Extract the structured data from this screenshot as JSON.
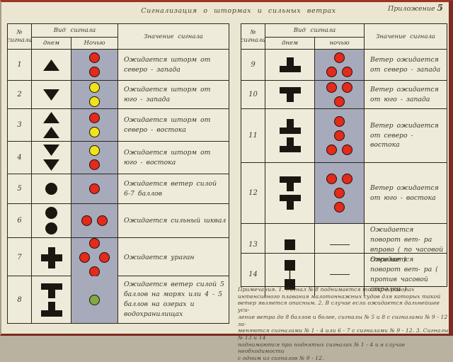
{
  "page": {
    "title": "Сигнализация  о  штормах  и  сильных  ветрах",
    "appendix_label": "Приложение",
    "appendix_number": "5"
  },
  "colors": {
    "red": "#e32a1b",
    "yellow": "#f0e31c",
    "green": "#82a944",
    "signal_black": "#1b1710",
    "night_bg": "#a7aaba",
    "accent_border": "#9e3424"
  },
  "tables": [
    {
      "id": "storm-signals",
      "header": {
        "col_num_line1": "№",
        "col_num_line2": "сигнала",
        "col_view": "Вид  сигнала",
        "col_day": "днем",
        "col_night": "Ночью",
        "col_meaning": "Значение  сигнала"
      },
      "rows": [
        {
          "num": "1",
          "day": [
            "triangle-up"
          ],
          "night": {
            "dots": [
              [
                "red"
              ],
              [
                "red"
              ]
            ]
          },
          "meaning": "Ожидается  шторм  от северо - запада"
        },
        {
          "num": "2",
          "day": [
            "triangle-down"
          ],
          "night": {
            "dots": [
              [
                "yellow"
              ],
              [
                "yellow"
              ]
            ]
          },
          "meaning": "Ожидается  шторм  от юго - запада"
        },
        {
          "num": "3",
          "day": [
            "triangle-up",
            "triangle-up"
          ],
          "night": {
            "dots": [
              [
                "red"
              ],
              [
                "yellow"
              ]
            ]
          },
          "meaning": "Ожидается  шторм  от северо - востока"
        },
        {
          "num": "4",
          "day": [
            "triangle-down",
            "triangle-down"
          ],
          "night": {
            "dots": [
              [
                "yellow"
              ],
              [
                "red"
              ]
            ]
          },
          "meaning": "Ожидается  шторм  от юго - востока"
        },
        {
          "num": "5",
          "day": [
            "circle"
          ],
          "night": {
            "dots": [
              [
                "red"
              ]
            ]
          },
          "meaning": "Ожидается  ветер силой  6-7  баллов"
        },
        {
          "num": "6",
          "day": [
            "circle",
            "circle"
          ],
          "night": {
            "dots": [
              [
                "red",
                "red"
              ]
            ]
          },
          "meaning": "Ожидается  сильный шквал"
        },
        {
          "num": "7",
          "day": [
            "cross"
          ],
          "night": {
            "dots": [
              [
                "red"
              ],
              [
                "red",
                "red"
              ],
              [
                "red"
              ]
            ],
            "diamond": true
          },
          "meaning": "Ожидается  ураган"
        },
        {
          "num": "8",
          "day": [
            "tee-down",
            "tee-up"
          ],
          "night": {
            "dots": [
              [
                "green"
              ]
            ]
          },
          "meaning": "Ожидается  ветер  силой 5  баллов  на  морях  или 4 - 5  баллов  на  озерах и  водохранилищах"
        }
      ]
    },
    {
      "id": "wind-signals",
      "header": {
        "col_num_line1": "№",
        "col_num_line2": "сигнала",
        "col_view": "Вид  сигнала",
        "col_day": "днем",
        "col_night": "ночью",
        "col_meaning": "Значение  сигнала"
      },
      "rows": [
        {
          "num": "9",
          "day": [
            "tee-up"
          ],
          "night": {
            "dots": [
              [
                "red"
              ],
              [
                "red",
                "red"
              ]
            ]
          },
          "meaning": "Ветер  ожидается  от северо - запада"
        },
        {
          "num": "10",
          "day": [
            "tee-down"
          ],
          "night": {
            "dots": [
              [
                "red",
                "red"
              ],
              [
                "red"
              ]
            ]
          },
          "meaning": "Ветер  ожидается  от юго - запада"
        },
        {
          "num": "11",
          "day": [
            "tee-up",
            "tee-up"
          ],
          "night": {
            "dots": [
              [
                "red"
              ],
              [
                "red"
              ],
              [
                "red",
                "red"
              ]
            ]
          },
          "meaning": "Ветер  ожидается  от северо - востока"
        },
        {
          "num": "12",
          "day": [
            "tee-down",
            "tee-down"
          ],
          "night": {
            "dots": [
              [
                "red",
                "red"
              ],
              [
                "red"
              ],
              [
                "red"
              ]
            ]
          },
          "meaning": "Ветер  ожидается  от юго - востока"
        },
        {
          "num": "13",
          "day": [
            "square"
          ],
          "night": {
            "dash": true
          },
          "meaning": "Ожидается  поворот вет- ра вправо ( по часовой стрелке )"
        },
        {
          "num": "14",
          "day": [
            "squares-linked"
          ],
          "night": {
            "dash": true
          },
          "meaning": "Ожидается  поворот вет- ра ( против  часовой стрелки )"
        }
      ]
    }
  ],
  "notes_lines": [
    "Примечания.  1. Сигнал № 8 поднимается  только  в  районах",
    "интенсивного  плавания  малотоннажных  судов  для которых  такой",
    "ветер  является  опасным.  2. В случае  если  ожидается  дальнейшее  уси-",
    "ление ветра  до  8  баллов  и  более, сигналы  № 5  и  8  с  сигналами  № 9 - 12  за-",
    "меняются  сигналами  № 1 - 4  или  6 - 7  с  сигналами  № 9 - 12.   3. Сигналы  № 13  и  14",
    "поднимаются  при  поднятых  сигналах  № 1 - 4  и  в  случае  необходимости",
    "с  одним  из  сигналов  № 9 - 12."
  ]
}
